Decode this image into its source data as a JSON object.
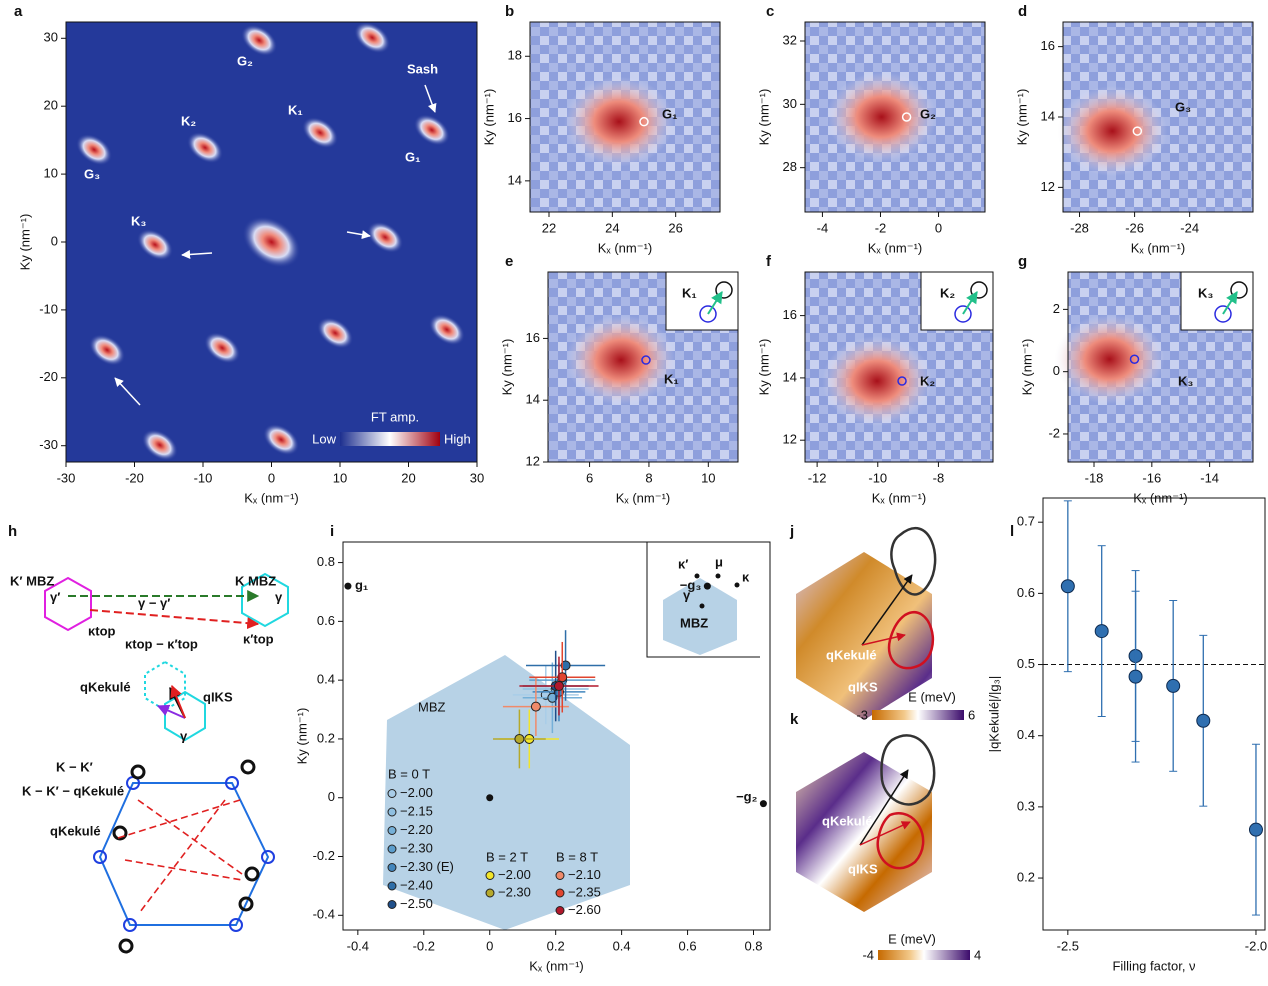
{
  "chart_data": [
    {
      "type": "heatmap",
      "panel": "a",
      "xlabel": "Kₓ (nm⁻¹)",
      "ylabel": "Ky (nm⁻¹)",
      "xlim": [
        -30,
        30
      ],
      "ylim": [
        -32.4,
        32.4
      ],
      "xticks": [
        -30,
        -20,
        -10,
        0,
        10,
        20,
        30
      ],
      "yticks": [
        -30,
        -20,
        -10,
        0,
        10,
        20,
        30
      ],
      "spots": {
        "x": [
          0,
          -1.8,
          14.7,
          -25.9,
          -9.7,
          7.1,
          23.4,
          -17,
          16.6,
          -24,
          -7.2,
          9.3,
          25.6,
          -16.3,
          1.4
        ],
        "y": [
          0,
          29.7,
          30.1,
          13.6,
          13.9,
          16.1,
          16.5,
          -0.4,
          0.7,
          -15.9,
          -15.6,
          -13.4,
          -12.9,
          -29.9,
          -29.1
        ]
      },
      "annotations": [
        "G₂",
        "K₂",
        "K₁",
        "Sash",
        "G₁",
        "G₃",
        "K₃"
      ],
      "colorbar": {
        "title": "FT amp.",
        "low": "Low",
        "high": "High"
      }
    },
    {
      "type": "heatmap",
      "panel": "b",
      "xlabel": "Kₓ (nm⁻¹)",
      "ylabel": "Ky (nm⁻¹)",
      "xlim": [
        21.4,
        27.4
      ],
      "ylim": [
        13,
        19.1
      ],
      "xticks": [
        22,
        24,
        26
      ],
      "yticks": [
        14,
        16,
        18
      ],
      "marker": {
        "x": 25,
        "y": 15.9
      },
      "annotations": [
        "G₁"
      ]
    },
    {
      "type": "heatmap",
      "panel": "c",
      "xlabel": "Kₓ (nm⁻¹)",
      "ylabel": "Ky (nm⁻¹)",
      "xlim": [
        -4.6,
        1.6
      ],
      "ylim": [
        26.6,
        32.6
      ],
      "xticks": [
        -4,
        -2,
        0
      ],
      "yticks": [
        28,
        30,
        32
      ],
      "marker": {
        "x": -1.1,
        "y": 29.6
      },
      "annotations": [
        "G₂"
      ]
    },
    {
      "type": "heatmap",
      "panel": "d",
      "xlabel": "Kₓ (nm⁻¹)",
      "ylabel": "Ky (nm⁻¹)",
      "xlim": [
        -28.6,
        -21.7
      ],
      "ylim": [
        11.3,
        16.7
      ],
      "xticks": [
        -28,
        -26,
        -24
      ],
      "yticks": [
        12,
        14,
        16
      ],
      "marker": {
        "x": -25.9,
        "y": 13.6
      },
      "annotations": [
        "G₃"
      ]
    },
    {
      "type": "heatmap",
      "panel": "e",
      "xlabel": "Kₓ (nm⁻¹)",
      "ylabel": "Ky (nm⁻¹)",
      "xlim": [
        4.6,
        11
      ],
      "ylim": [
        12,
        18.15
      ],
      "xticks": [
        6,
        8,
        10
      ],
      "yticks": [
        12,
        14,
        16
      ],
      "marker": {
        "x": 7.9,
        "y": 15.3
      },
      "annotations": [
        "K₁",
        "K₁"
      ]
    },
    {
      "type": "heatmap",
      "panel": "f",
      "xlabel": "Kₓ (nm⁻¹)",
      "ylabel": "Ky (nm⁻¹)",
      "xlim": [
        -12.4,
        -6.2
      ],
      "ylim": [
        11.3,
        17.4
      ],
      "xticks": [
        -12,
        -10,
        -8
      ],
      "yticks": [
        12,
        14,
        16
      ],
      "marker": {
        "x": -9.2,
        "y": 13.9
      },
      "annotations": [
        "K₂",
        "K₂"
      ]
    },
    {
      "type": "heatmap",
      "panel": "g",
      "xlabel": "Kₓ (nm⁻¹)",
      "ylabel": "Ky (nm⁻¹)",
      "xlim": [
        -18.9,
        -12.5
      ],
      "ylim": [
        -2.9,
        3.2
      ],
      "xticks": [
        -18,
        -16,
        -14
      ],
      "yticks": [
        -2,
        0,
        2
      ],
      "marker": {
        "x": -16.6,
        "y": 0.4
      },
      "annotations": [
        "K₃",
        "K₃"
      ]
    },
    {
      "type": "bz",
      "panel": "i",
      "xlabel": "Kₓ (nm⁻¹)",
      "ylabel": "Ky (nm⁻¹)",
      "xlim": [
        -0.445,
        0.85
      ],
      "ylim": [
        -0.45,
        0.87
      ],
      "xticks": [
        -0.4,
        -0.2,
        0,
        0.2,
        0.4,
        0.6,
        0.8
      ],
      "yticks": [
        -0.4,
        -0.2,
        0,
        0.2,
        0.4,
        0.6,
        0.8
      ],
      "reference_points": {
        "labels": [
          "g₁",
          "−g₃",
          "−g₂",
          null
        ],
        "x": [
          -0.43,
          0.66,
          0.83,
          0
        ],
        "y": [
          0.72,
          0.72,
          -0.02,
          0
        ]
      },
      "groups": [
        {
          "title": "B = 0 T",
          "series": [
            {
              "name": "−2.00",
              "color": "#a9cde8",
              "x": 0.17,
              "y": 0.35,
              "xerr": 0.1,
              "yerr": 0.1
            },
            {
              "name": "−2.15",
              "color": "#8fbfe0",
              "x": 0.2,
              "y": 0.37,
              "xerr": 0.1,
              "yerr": 0.1
            },
            {
              "name": "−2.20",
              "color": "#75b0d8",
              "x": 0.19,
              "y": 0.34,
              "xerr": 0.09,
              "yerr": 0.12
            },
            {
              "name": "−2.30",
              "color": "#5b9dcc",
              "x": 0.22,
              "y": 0.4,
              "xerr": 0.1,
              "yerr": 0.1
            },
            {
              "name": "−2.30 (E)",
              "color": "#4286bd",
              "x": 0.21,
              "y": 0.36,
              "xerr": 0.08,
              "yerr": 0.1
            },
            {
              "name": "−2.40",
              "color": "#2e6ea8",
              "x": 0.23,
              "y": 0.45,
              "xerr": 0.12,
              "yerr": 0.12
            },
            {
              "name": "−2.50",
              "color": "#1f4f8a",
              "x": 0.2,
              "y": 0.38,
              "xerr": 0.1,
              "yerr": 0.12
            }
          ]
        },
        {
          "title": "B = 2 T",
          "series": [
            {
              "name": "−2.00",
              "color": "#f2e52a",
              "x": 0.12,
              "y": 0.2,
              "xerr": 0.09,
              "yerr": 0.1
            },
            {
              "name": "−2.30",
              "color": "#b6a92b",
              "x": 0.09,
              "y": 0.2,
              "xerr": 0.08,
              "yerr": 0.1
            }
          ]
        },
        {
          "title": "B = 8 T",
          "series": [
            {
              "name": "−2.10",
              "color": "#f08a6a",
              "x": 0.14,
              "y": 0.31,
              "xerr": 0.1,
              "yerr": 0.1
            },
            {
              "name": "−2.35",
              "color": "#e0452f",
              "x": 0.22,
              "y": 0.41,
              "xerr": 0.1,
              "yerr": 0.12
            },
            {
              "name": "−2.60",
              "color": "#b2182b",
              "x": 0.21,
              "y": 0.38,
              "xerr": 0.12,
              "yerr": 0.1
            }
          ]
        }
      ],
      "annotations": [
        "MBZ"
      ],
      "inset_labels": [
        "κ′",
        "μ",
        "κ",
        "γ",
        "MBZ"
      ]
    },
    {
      "type": "scatter",
      "panel": "l",
      "xlabel": "Filling factor, ν",
      "ylabel": "|qKekulé|/|g₃|",
      "xlim": [
        -2.566,
        -1.976
      ],
      "ylim": [
        0.127,
        0.734
      ],
      "xticks": [
        -2.5,
        {
          "value": -2,
          "label": "-2.0"
        }
      ],
      "yticks": [
        0.2,
        0.3,
        0.4,
        0.5,
        0.6,
        0.7
      ],
      "hline": 0.5,
      "series": {
        "color": "#2f6fb0",
        "x": [
          -2.5,
          -2.41,
          -2.32,
          -2.32,
          -2.22,
          -2.14,
          -2.0
        ],
        "y": [
          0.61,
          0.547,
          0.512,
          0.483,
          0.47,
          0.421,
          0.268
        ],
        "yerr": [
          0.12,
          0.12,
          0.12,
          0.12,
          0.12,
          0.12,
          0.12
        ]
      }
    }
  ],
  "diagram_h": {
    "panel": "h",
    "labels": [
      "K′ MBZ",
      "K MBZ",
      "γ′",
      "γ",
      "γ − γ′",
      "κtop",
      "κtop − κ′top",
      "κ′top",
      "qKekulé",
      "qIKS",
      "γ",
      "K − K′",
      "K − K′ − qKekulé",
      "qKekulé"
    ]
  },
  "diagram_j": {
    "panel": "j",
    "labels": [
      "qKekulé",
      "qIKS"
    ],
    "colorbar": {
      "title": "E (meV)",
      "ticks": [
        -3,
        6
      ]
    }
  },
  "diagram_k": {
    "panel": "k",
    "labels": [
      "qKekulé",
      "qIKS"
    ],
    "colorbar": {
      "title": "E (meV)",
      "ticks": [
        -4,
        4
      ]
    }
  }
}
